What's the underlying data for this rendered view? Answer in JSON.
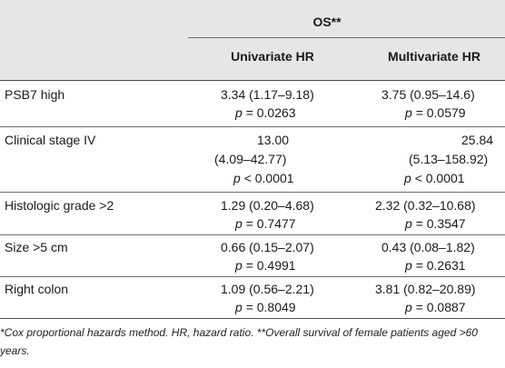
{
  "header": {
    "group_label": "OS**",
    "col_univariate": "Univariate HR",
    "col_multivariate": "Multivariate HR"
  },
  "rows": [
    {
      "label": "PSB7 high",
      "uni": [
        "3.34 (1.17–9.18)",
        "= 0.0263"
      ],
      "multi": [
        "3.75 (0.95–14.6)",
        "= 0.0579"
      ]
    },
    {
      "label": "Clinical stage IV",
      "uni": [
        "13.00",
        "(4.09–42.77)",
        "< 0.0001"
      ],
      "multi": [
        "25.84",
        "(5.13–158.92)",
        "< 0.0001"
      ]
    },
    {
      "label": "Histologic grade >2",
      "uni": [
        "1.29 (0.20–4.68)",
        "= 0.7477"
      ],
      "multi": [
        "2.32 (0.32–10.68)",
        "= 0.3547"
      ]
    },
    {
      "label": "Size >5 cm",
      "uni": [
        "0.66 (0.15–2.07)",
        "= 0.4991"
      ],
      "multi": [
        "0.43 (0.08–1.82)",
        "= 0.2631"
      ]
    },
    {
      "label": "Right colon",
      "uni": [
        "1.09 (0.56–2.21)",
        "= 0.8049"
      ],
      "multi": [
        "3.81 (0.82–20.89)",
        "= 0.0887"
      ]
    }
  ],
  "p_symbol": "p",
  "footnote": "*Cox proportional hazards method. HR, hazard ratio. **Overall survival of female patients aged >60 years.",
  "colors": {
    "header_background": "#e6e6e6",
    "rule": "#4a4a4a",
    "text": "#1a1a1a"
  }
}
